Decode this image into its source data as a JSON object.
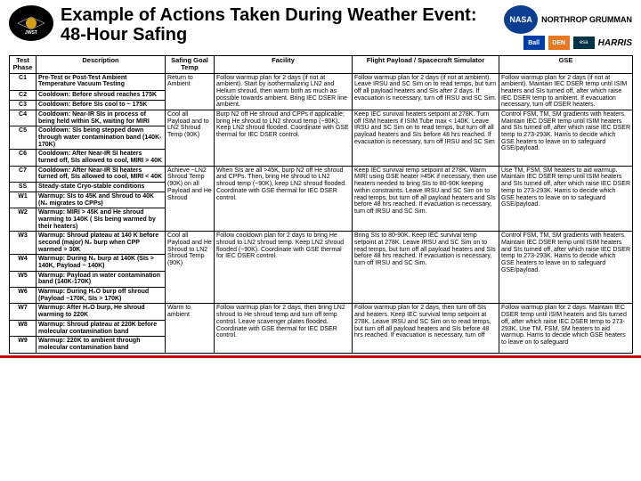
{
  "title": "Example of Actions Taken During Weather Event: 48-Hour Safing",
  "columns": [
    "Test Phase",
    "Description",
    "Safing Goal Temp",
    "Facility",
    "Flight Payload / Spacecraft Simulator",
    "GSE"
  ],
  "rows": [
    {
      "phase": "C1",
      "desc": "Pre-Test or Post-Test Ambient Temperature Vacuum Testing",
      "safe": "Return to Ambient",
      "fac": "Follow warmup plan for 2 days (if not at ambient). Start by isothermalizing LN2 and Helium shroud, then warm both as much as possible towards ambient. Bring IEC DSER line ambient.",
      "flight": "Follow warmup plan for 2 days (if not at ambient). Leave IRSU and SC Sim on to read temps, but turn off all payload heaters and SIs after 2 days. If evacuation is necessary, turn off IRSU and SC Sim.",
      "gse": "Follow warmup plan for 2 days (if not at ambient). Maintain IEC DSER temp until ISIM heaters and SIs turned off, after which raise IEC DSER temp to ambient. If evacuation necessary, turn off DSER heaters."
    },
    {
      "phase": "C2",
      "desc": "Cooldown: Before shroud reaches 175K",
      "safe": "",
      "fac": "",
      "flight": "",
      "gse": ""
    },
    {
      "phase": "C3",
      "desc": "Cooldown: Before SIs cool to ~ 175K",
      "safe": "",
      "fac": "",
      "flight": "",
      "gse": ""
    },
    {
      "phase": "C4",
      "desc": "Cooldown: Near-IR SIs in process of being held within SK, waiting for MIRI",
      "safe": "Cool all Payload and to LN2 Shroud Temp (90K)",
      "fac": "Burp N2 off He shroud and CPPs if applicable; bring He shroud to LN2 shroud temp (~90K). Keep LN2 shroud flooded. Coordinate with GSE thermal for IEC DSER control.",
      "flight": "Keep IEC survival heaters setpoint at 278K. Turn off ISIM heaters if ISIM Tube max < 140K. Leave IRSU and SC Sim on to read temps, but turn off all payload heaters and SIs before 48 hrs reached. If evacuation is necessary, turn off IRSU and SC Sim",
      "gse": "Control FSM, TM, SM gradients with heaters. Maintain IEC DSER temp until ISIM heaters and SIs turned off, after which raise IEC DSER temp to 273-293K. Harris to decide which GSE heaters to leave on to safeguard GSE/payload."
    },
    {
      "phase": "C5",
      "desc": "Cooldown: SIs being stepped down through water contamination band (140K-170K)",
      "safe": "",
      "fac": "",
      "flight": "",
      "gse": ""
    },
    {
      "phase": "C6",
      "desc": "Cooldown: After Near-IR SI heaters turned off, SIs allowed to cool, MIRI > 40K",
      "safe": "",
      "fac": "",
      "flight": "",
      "gse": ""
    },
    {
      "phase": "C7",
      "desc": "Cooldown: After Near-IR SI heaters turned off, SIs allowed to cool, MIRI < 40K",
      "safe": "Achieve ~LN2 Shroud Temp (90K) on all Payload and He Shroud",
      "fac": "When SIs are all >45K, burp N2 off He shroud and CPPs. Then, bring He shroud to LN2 shroud temp (~90K), keep LN2 shroud flooded. Coordinate with GSE thermal for IEC DSER control.",
      "flight": "Keep IEC survival temp setpoint at 278K. Warm MIRI using GSE heater >45K if necessary, then use heaters needed to bring SIs to 80-90K keeping within constraints. Leave IRSU and SC Sim on to read temps, but turn off all payload heaters and SIs before 48 hrs reached. If evacuation is necessary, turn off IRSU and SC Sim.",
      "gse": "Use TM, FSM, SM heaters to aid warmup. Maintain IEC DSER temp until ISIM heaters and SIs turned off, after which raise IEC DSER temp to 273-293K. Harris to decide which GSE heaters to leave on to safeguard GSE/payload."
    },
    {
      "phase": "SS",
      "desc": "Steady-state Cryo-stable conditions",
      "safe": "",
      "fac": "",
      "flight": "",
      "gse": ""
    },
    {
      "phase": "W1",
      "desc": "Warmup: SIs to 45K and Shroud to 40K (N₂ migrates to CPPs)",
      "safe": "",
      "fac": "",
      "flight": "",
      "gse": ""
    },
    {
      "phase": "W2",
      "desc": "Warmup: MIRI > 45K and He shroud warming to 140K ( SIs being warmed by their heaters)",
      "safe": "",
      "fac": "",
      "flight": "",
      "gse": ""
    },
    {
      "phase": "W3",
      "desc": "Warmup: Shroud plateau at 140 K before second (major) N₂ burp when CPP warmed > 30K",
      "safe": "Cool all Payload and He Shroud to LN2 Shroud Temp (90K)",
      "fac": "Follow cooldown plan for 2 days to bring He shroud to LN2 shroud temp. Keep LN2 shroud flooded (~90K). Coordinate with GSE thermal for IEC DSER control.",
      "flight": "Bring SIs to 80-90K. Keep IEC survival temp setpoint at 278K. Leave IRSU and SC Sim on to read temps, but turn off all payload heaters and SIs before 48 hrs reached. If evacuation is necessary, turn off IRSU and SC Sim.",
      "gse": "Control FSM, TM, SM gradients with heaters. Maintain IEC DSER temp until ISIM heaters and SIs turned off, after which raise IEC DSER temp to 273-293K. Harris to decide which GSE heaters to leave on to safeguard GSE/payload."
    },
    {
      "phase": "W4",
      "desc": "Warmup: During N₂ burp at 140K (SIs > 140K, Payload ~ 140K)",
      "safe": "",
      "fac": "",
      "flight": "",
      "gse": ""
    },
    {
      "phase": "W5",
      "desc": "Warmup: Payload in water contamination band (140K-170K)",
      "safe": "",
      "fac": "",
      "flight": "",
      "gse": ""
    },
    {
      "phase": "W6",
      "desc": "Warmup: During H₂O burp off shroud (Payload ~170K, SIs > 170K)",
      "safe": "",
      "fac": "",
      "flight": "",
      "gse": ""
    },
    {
      "phase": "W7",
      "desc": "Warmup: After H₂O burp, He shroud warming to 220K",
      "safe": "Warm to ambient",
      "fac": "Follow warmup plan for 2 days, then bring LN2 shroud to He shroud temp and turn off temp control. Leave scavenger plates flooded. Coordinate with GSE thermal for IEC DSER control.",
      "flight": "Follow warmup plan for 2 days, then turn off SIs and heaters. Keep IEC survival temp setpoint at 278K. Leave IRSU and SC Sim on to read temps, but turn off all payload heaters and SIs before 48 hrs reached. If evacuation is necessary, turn off",
      "gse": "Follow warmup plan for 2 days. Maintain IEC DSER temp until ISIM heaters and SIs turned off, after which raise IEC DSER temp to 273-293K. Use TM, FSM, SM heaters to aid warmup. Harris to decide which GSE heaters to leave on to safeguard"
    },
    {
      "phase": "W8",
      "desc": "Warmup: Shroud plateau at 220K before molecular contamination band",
      "safe": "",
      "fac": "",
      "flight": "",
      "gse": ""
    },
    {
      "phase": "W9",
      "desc": "Warmup: 220K to ambient through molecular contamination band",
      "safe": "",
      "fac": "",
      "flight": "",
      "gse": ""
    }
  ],
  "rowspans": {
    "0": 3,
    "3": 3,
    "6": 4,
    "10": 4,
    "14": 3
  },
  "colors": {
    "border": "#000000",
    "bg": "#ffffff",
    "red": "#c00000"
  }
}
